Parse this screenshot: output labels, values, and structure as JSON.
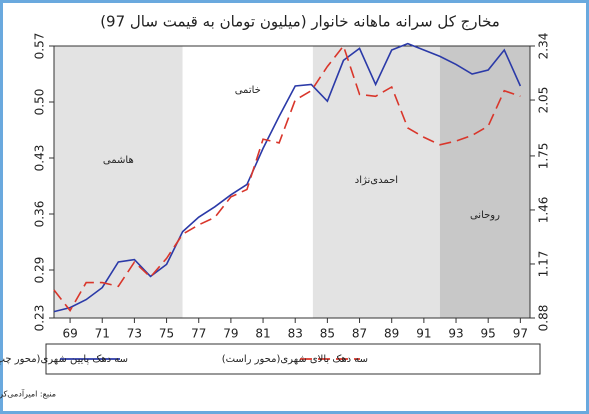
{
  "chart_data": {
    "type": "line",
    "title": "مخارج کل سرانه ماهانه خانوار (میلیون تومان به قیمت سال 97)",
    "x": [
      68,
      69,
      70,
      71,
      72,
      73,
      74,
      75,
      76,
      77,
      78,
      79,
      80,
      81,
      82,
      83,
      84,
      85,
      86,
      87,
      88,
      89,
      90,
      91,
      92,
      93,
      94,
      95,
      96,
      97
    ],
    "xlim": [
      68,
      97.6
    ],
    "xticks": [
      69,
      71,
      73,
      75,
      77,
      79,
      81,
      83,
      85,
      87,
      89,
      91,
      93,
      95,
      97
    ],
    "ylim": [
      0.23,
      0.57
    ],
    "yticks": [
      0.23,
      0.29,
      0.36,
      0.43,
      {
        "value": 0.5,
        "label": "0.50"
      },
      0.57
    ],
    "y2lim": [
      0.88,
      2.34
    ],
    "y2ticks": [
      0.88,
      1.17,
      1.46,
      1.75,
      2.05,
      2.34
    ],
    "periods": [
      {
        "name": "هاشمی",
        "start": 68,
        "end": 76,
        "color": "#e3e3e3"
      },
      {
        "name": "خاتمی",
        "start": 76,
        "end": 84.1,
        "color": "#ffffff"
      },
      {
        "name": "احمدی‌نژاد",
        "start": 84.1,
        "end": 92,
        "color": "#e3e3e3"
      },
      {
        "name": "روحانی",
        "start": 92,
        "end": 97.6,
        "color": "#c8c8c8"
      }
    ],
    "series": [
      {
        "name": "سه دهک پایین شهری(محور چپ)",
        "color": "#2b3aa8",
        "dash": false,
        "values": [
          0.238,
          0.243,
          0.253,
          0.268,
          0.3,
          0.303,
          0.282,
          0.297,
          0.338,
          0.356,
          0.369,
          0.384,
          0.397,
          0.442,
          0.482,
          0.52,
          0.522,
          0.501,
          0.552,
          0.567,
          0.522,
          0.565,
          0.573,
          0.565,
          0.557,
          0.547,
          0.535,
          0.54,
          0.565,
          0.52
        ]
      },
      {
        "name": "سه دهک بالای شهری(محور راست)",
        "color": "#d9362b",
        "dash": true,
        "axis": "y2",
        "values": [
          1.03,
          0.92,
          1.07,
          1.07,
          1.05,
          1.18,
          1.1,
          1.2,
          1.33,
          1.38,
          1.42,
          1.53,
          1.57,
          1.84,
          1.82,
          2.05,
          2.1,
          2.23,
          2.34,
          2.08,
          2.07,
          2.12,
          1.9,
          1.85,
          1.81,
          1.83,
          1.86,
          1.91,
          2.1,
          2.07
        ]
      }
    ],
    "source": "منبع: امیرآدمی‌کرمانی بر اساس داده‌های بودجه‌ی خانوار"
  }
}
